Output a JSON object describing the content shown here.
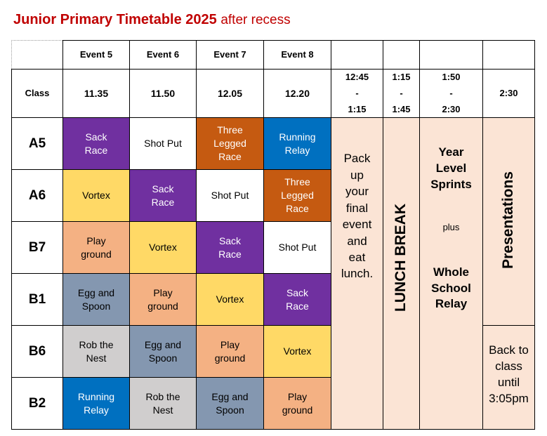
{
  "title": {
    "main": "Junior Primary Timetable 2025",
    "sub": "after recess"
  },
  "header": {
    "events": [
      "Event 5",
      "Event 6",
      "Event 7",
      "Event 8"
    ],
    "class_label": "Class",
    "times": [
      "11.35",
      "11.50",
      "12.05",
      "12.20"
    ],
    "slots": [
      [
        "12:45",
        "-",
        "1:15"
      ],
      [
        "1:15",
        "-",
        "1:45"
      ],
      [
        "1:50",
        "-",
        "2:30"
      ],
      [
        "2:30"
      ]
    ]
  },
  "rows": [
    {
      "class": "A5",
      "cells": [
        {
          "lines": [
            "Sack",
            "Race"
          ],
          "color": "#7030a0"
        },
        {
          "lines": [
            "Shot Put"
          ],
          "color": "#ffffff"
        },
        {
          "lines": [
            "Three",
            "Legged",
            "Race"
          ],
          "color": "#c55a11"
        },
        {
          "lines": [
            "Running",
            "Relay"
          ],
          "color": "#0070c0"
        }
      ]
    },
    {
      "class": "A6",
      "cells": [
        {
          "lines": [
            "Vortex"
          ],
          "color": "#ffd966"
        },
        {
          "lines": [
            "Sack",
            "Race"
          ],
          "color": "#7030a0"
        },
        {
          "lines": [
            "Shot Put"
          ],
          "color": "#ffffff"
        },
        {
          "lines": [
            "Three",
            "Legged",
            "Race"
          ],
          "color": "#c55a11"
        }
      ]
    },
    {
      "class": "B7",
      "cells": [
        {
          "lines": [
            "Play",
            "ground"
          ],
          "color": "#f4b183"
        },
        {
          "lines": [
            "Vortex"
          ],
          "color": "#ffd966"
        },
        {
          "lines": [
            "Sack",
            "Race"
          ],
          "color": "#7030a0"
        },
        {
          "lines": [
            "Shot Put"
          ],
          "color": "#ffffff"
        }
      ]
    },
    {
      "class": "B1",
      "cells": [
        {
          "lines": [
            "Egg and",
            "Spoon"
          ],
          "color": "#8497b0"
        },
        {
          "lines": [
            "Play",
            "ground"
          ],
          "color": "#f4b183"
        },
        {
          "lines": [
            "Vortex"
          ],
          "color": "#ffd966"
        },
        {
          "lines": [
            "Sack",
            "Race"
          ],
          "color": "#7030a0"
        }
      ]
    },
    {
      "class": "B6",
      "cells": [
        {
          "lines": [
            "Rob the",
            "Nest"
          ],
          "color": "#d0cece"
        },
        {
          "lines": [
            "Egg and",
            "Spoon"
          ],
          "color": "#8497b0"
        },
        {
          "lines": [
            "Play",
            "ground"
          ],
          "color": "#f4b183"
        },
        {
          "lines": [
            "Vortex"
          ],
          "color": "#ffd966"
        }
      ]
    },
    {
      "class": "B2",
      "cells": [
        {
          "lines": [
            "Running",
            "Relay"
          ],
          "color": "#0070c0"
        },
        {
          "lines": [
            "Rob the",
            "Nest"
          ],
          "color": "#d0cece"
        },
        {
          "lines": [
            "Egg and",
            "Spoon"
          ],
          "color": "#8497b0"
        },
        {
          "lines": [
            "Play",
            "ground"
          ],
          "color": "#f4b183"
        }
      ]
    }
  ],
  "merged": {
    "pack": [
      "Pack",
      "up",
      "your",
      "final",
      "event",
      "and",
      "eat",
      "lunch."
    ],
    "lunch_break": "LUNCH BREAK",
    "year_level": [
      "Year",
      "Level",
      "Sprints"
    ],
    "plus": "plus",
    "whole_school": [
      "Whole",
      "School",
      "Relay"
    ],
    "presentations": "Presentations",
    "back_to_class": [
      "Back to",
      "class",
      "until",
      "3:05pm"
    ],
    "merged_color": "#fbe4d5"
  }
}
